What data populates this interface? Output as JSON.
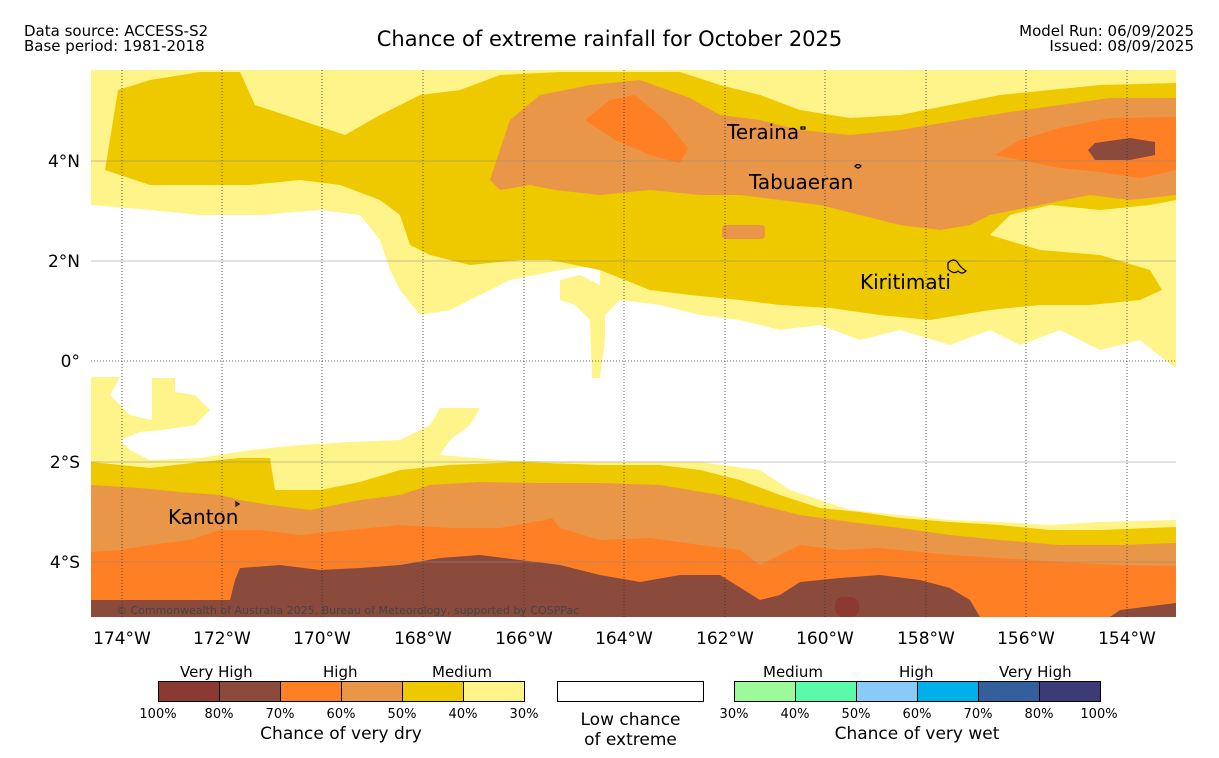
{
  "header": {
    "data_source": "Data source: ACCESS-S2",
    "base_period": "Base period: 1981-2018",
    "title": "Chance of extreme rainfall for October 2025",
    "model_run": "Model Run: 06/09/2025",
    "issued": "Issued: 08/09/2025"
  },
  "map": {
    "lon_labels": [
      "174°W",
      "172°W",
      "170°W",
      "168°W",
      "166°W",
      "164°W",
      "162°W",
      "160°W",
      "158°W",
      "156°W",
      "154°W"
    ],
    "lat_labels": [
      "4°N",
      "2°N",
      "0°",
      "2°S",
      "4°S"
    ],
    "places": {
      "teraina": "Teraina",
      "tabuaeran": "Tabuaeran",
      "kiritimati": "Kiritimati",
      "kanton": "Kanton"
    },
    "copyright": "© Commonwealth of Australia 2025, Bureau of Meteorology, supported by COSPPac"
  },
  "legend": {
    "dry": {
      "categories": [
        "Very High",
        "High",
        "Medium"
      ],
      "colors": [
        "#8b3a32",
        "#8a4b3c",
        "#ff7f25",
        "#ea9648",
        "#eec900",
        "#fff48a"
      ],
      "ticks": [
        "100%",
        "80%",
        "70%",
        "60%",
        "50%",
        "40%",
        "30%"
      ],
      "title": "Chance of very dry"
    },
    "low": {
      "color": "#ffffff",
      "title_line1": "Low chance",
      "title_line2": "of extreme"
    },
    "wet": {
      "categories": [
        "Medium",
        "High",
        "Very High"
      ],
      "colors": [
        "#9cfa9a",
        "#5bfaab",
        "#88cbf8",
        "#00b0eb",
        "#335f9c",
        "#3d3a78"
      ],
      "ticks": [
        "30%",
        "40%",
        "50%",
        "60%",
        "70%",
        "80%",
        "100%"
      ],
      "title": "Chance of very wet"
    }
  }
}
